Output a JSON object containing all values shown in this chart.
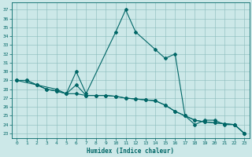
{
  "xlabel": "Humidex (Indice chaleur)",
  "bg_color": "#cce8e8",
  "grid_color": "#88bbbb",
  "line_color": "#006666",
  "xlim": [
    -0.5,
    23.5
  ],
  "ylim": [
    22.5,
    37.8
  ],
  "xticks": [
    0,
    1,
    2,
    3,
    4,
    5,
    6,
    7,
    8,
    9,
    10,
    11,
    12,
    13,
    14,
    15,
    16,
    17,
    18,
    19,
    20,
    21,
    22,
    23
  ],
  "yticks": [
    23,
    24,
    25,
    26,
    27,
    28,
    29,
    30,
    31,
    32,
    33,
    34,
    35,
    36,
    37
  ],
  "series1_x": [
    0,
    1,
    2,
    3,
    4,
    5,
    6,
    7,
    8,
    9,
    10,
    11,
    12,
    13,
    14,
    15,
    16,
    17,
    18,
    19,
    20,
    21,
    22,
    23
  ],
  "series1_y": [
    29.0,
    29.0,
    28.5,
    28.0,
    27.8,
    27.5,
    27.5,
    27.3,
    27.3,
    27.3,
    27.2,
    27.0,
    26.9,
    26.8,
    26.7,
    26.2,
    25.5,
    25.0,
    24.5,
    24.3,
    24.2,
    24.1,
    24.0,
    23.0
  ],
  "series2_x": [
    0,
    1,
    2,
    3,
    4,
    5,
    6,
    7,
    8,
    9,
    10,
    11,
    12,
    13,
    14,
    15,
    16,
    17,
    18,
    19,
    20,
    21,
    22,
    23
  ],
  "series2_y": [
    29.0,
    29.0,
    28.5,
    28.0,
    27.8,
    27.5,
    28.5,
    27.3,
    27.3,
    27.3,
    27.2,
    27.0,
    26.9,
    26.8,
    26.7,
    26.2,
    25.5,
    25.0,
    24.5,
    24.3,
    24.2,
    24.1,
    24.0,
    23.0
  ],
  "series3_x": [
    0,
    2,
    4,
    5,
    6,
    7,
    10,
    11,
    12,
    14,
    15,
    16,
    17,
    18,
    19,
    20,
    21,
    22,
    23
  ],
  "series3_y": [
    29.0,
    28.5,
    28.0,
    27.5,
    30.0,
    27.5,
    34.5,
    37.0,
    34.5,
    32.5,
    31.5,
    32.0,
    25.0,
    24.0,
    24.5,
    24.5,
    24.0,
    24.0,
    23.0
  ]
}
